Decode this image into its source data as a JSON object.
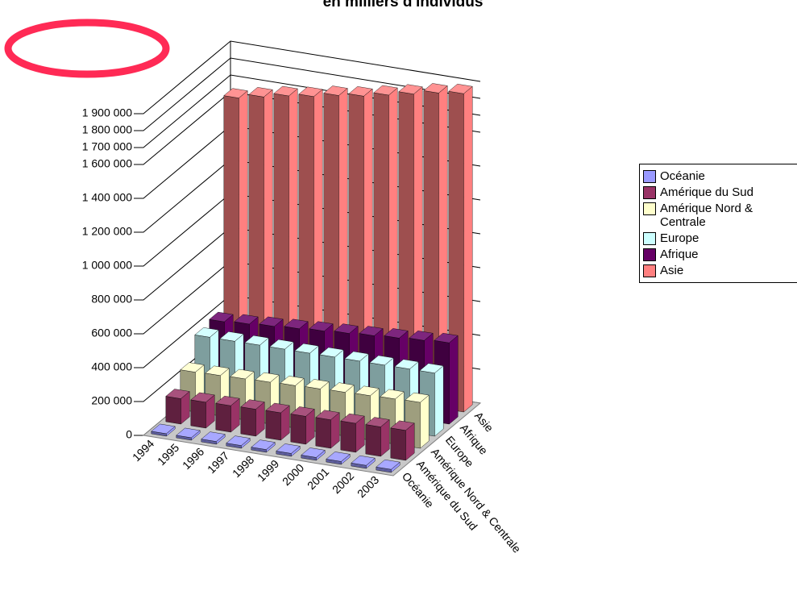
{
  "chart_data": {
    "type": "bar3d",
    "title": "en milliers d'individus",
    "categories": [
      "1994",
      "1995",
      "1996",
      "1997",
      "1998",
      "1999",
      "2000",
      "2001",
      "2002",
      "2003"
    ],
    "series": [
      {
        "name": "Océanie",
        "color": "#9999ff",
        "values": [
          15000,
          15000,
          16000,
          16000,
          16000,
          17000,
          17000,
          17000,
          18000,
          18000
        ]
      },
      {
        "name": "Amérique du Sud",
        "color": "#993366",
        "values": [
          150000,
          153000,
          156000,
          159000,
          162000,
          165000,
          168000,
          171000,
          174000,
          177000
        ]
      },
      {
        "name": "Amérique Nord & Centrale",
        "color": "#ffffcc",
        "values": [
          235000,
          239000,
          243000,
          247000,
          251000,
          255000,
          259000,
          263000,
          267000,
          271000
        ]
      },
      {
        "name": "Europe",
        "color": "#ccffff",
        "values": [
          370000,
          370000,
          371000,
          371000,
          371000,
          372000,
          372000,
          372000,
          373000,
          373000
        ]
      },
      {
        "name": "Afrique",
        "color": "#660066",
        "values": [
          390000,
          400000,
          410000,
          420000,
          430000,
          440000,
          450000,
          460000,
          470000,
          480000
        ]
      },
      {
        "name": "Asie",
        "color": "#ff8080",
        "values": [
          1640000,
          1670000,
          1700000,
          1720000,
          1750000,
          1770000,
          1800000,
          1830000,
          1860000,
          1880000
        ]
      }
    ],
    "ylim": [
      0,
      1900000
    ],
    "yticks": [
      0,
      {
        "value": 200000,
        "label": "200 000"
      },
      {
        "value": 400000,
        "label": "400 000"
      },
      {
        "value": 600000,
        "label": "600 000"
      },
      {
        "value": 800000,
        "label": "800 000"
      },
      {
        "value": 1000000,
        "label": "1 000 000"
      },
      {
        "value": 1200000,
        "label": "1 200 000"
      },
      {
        "value": 1400000,
        "label": "1 400 000"
      },
      {
        "value": 1600000,
        "label": "1 600 000"
      },
      {
        "value": 1700000,
        "label": "1 700 000"
      },
      {
        "value": 1800000,
        "label": "1 800 000"
      },
      {
        "value": 1900000,
        "label": "1 900 000"
      }
    ],
    "legend": "right"
  }
}
